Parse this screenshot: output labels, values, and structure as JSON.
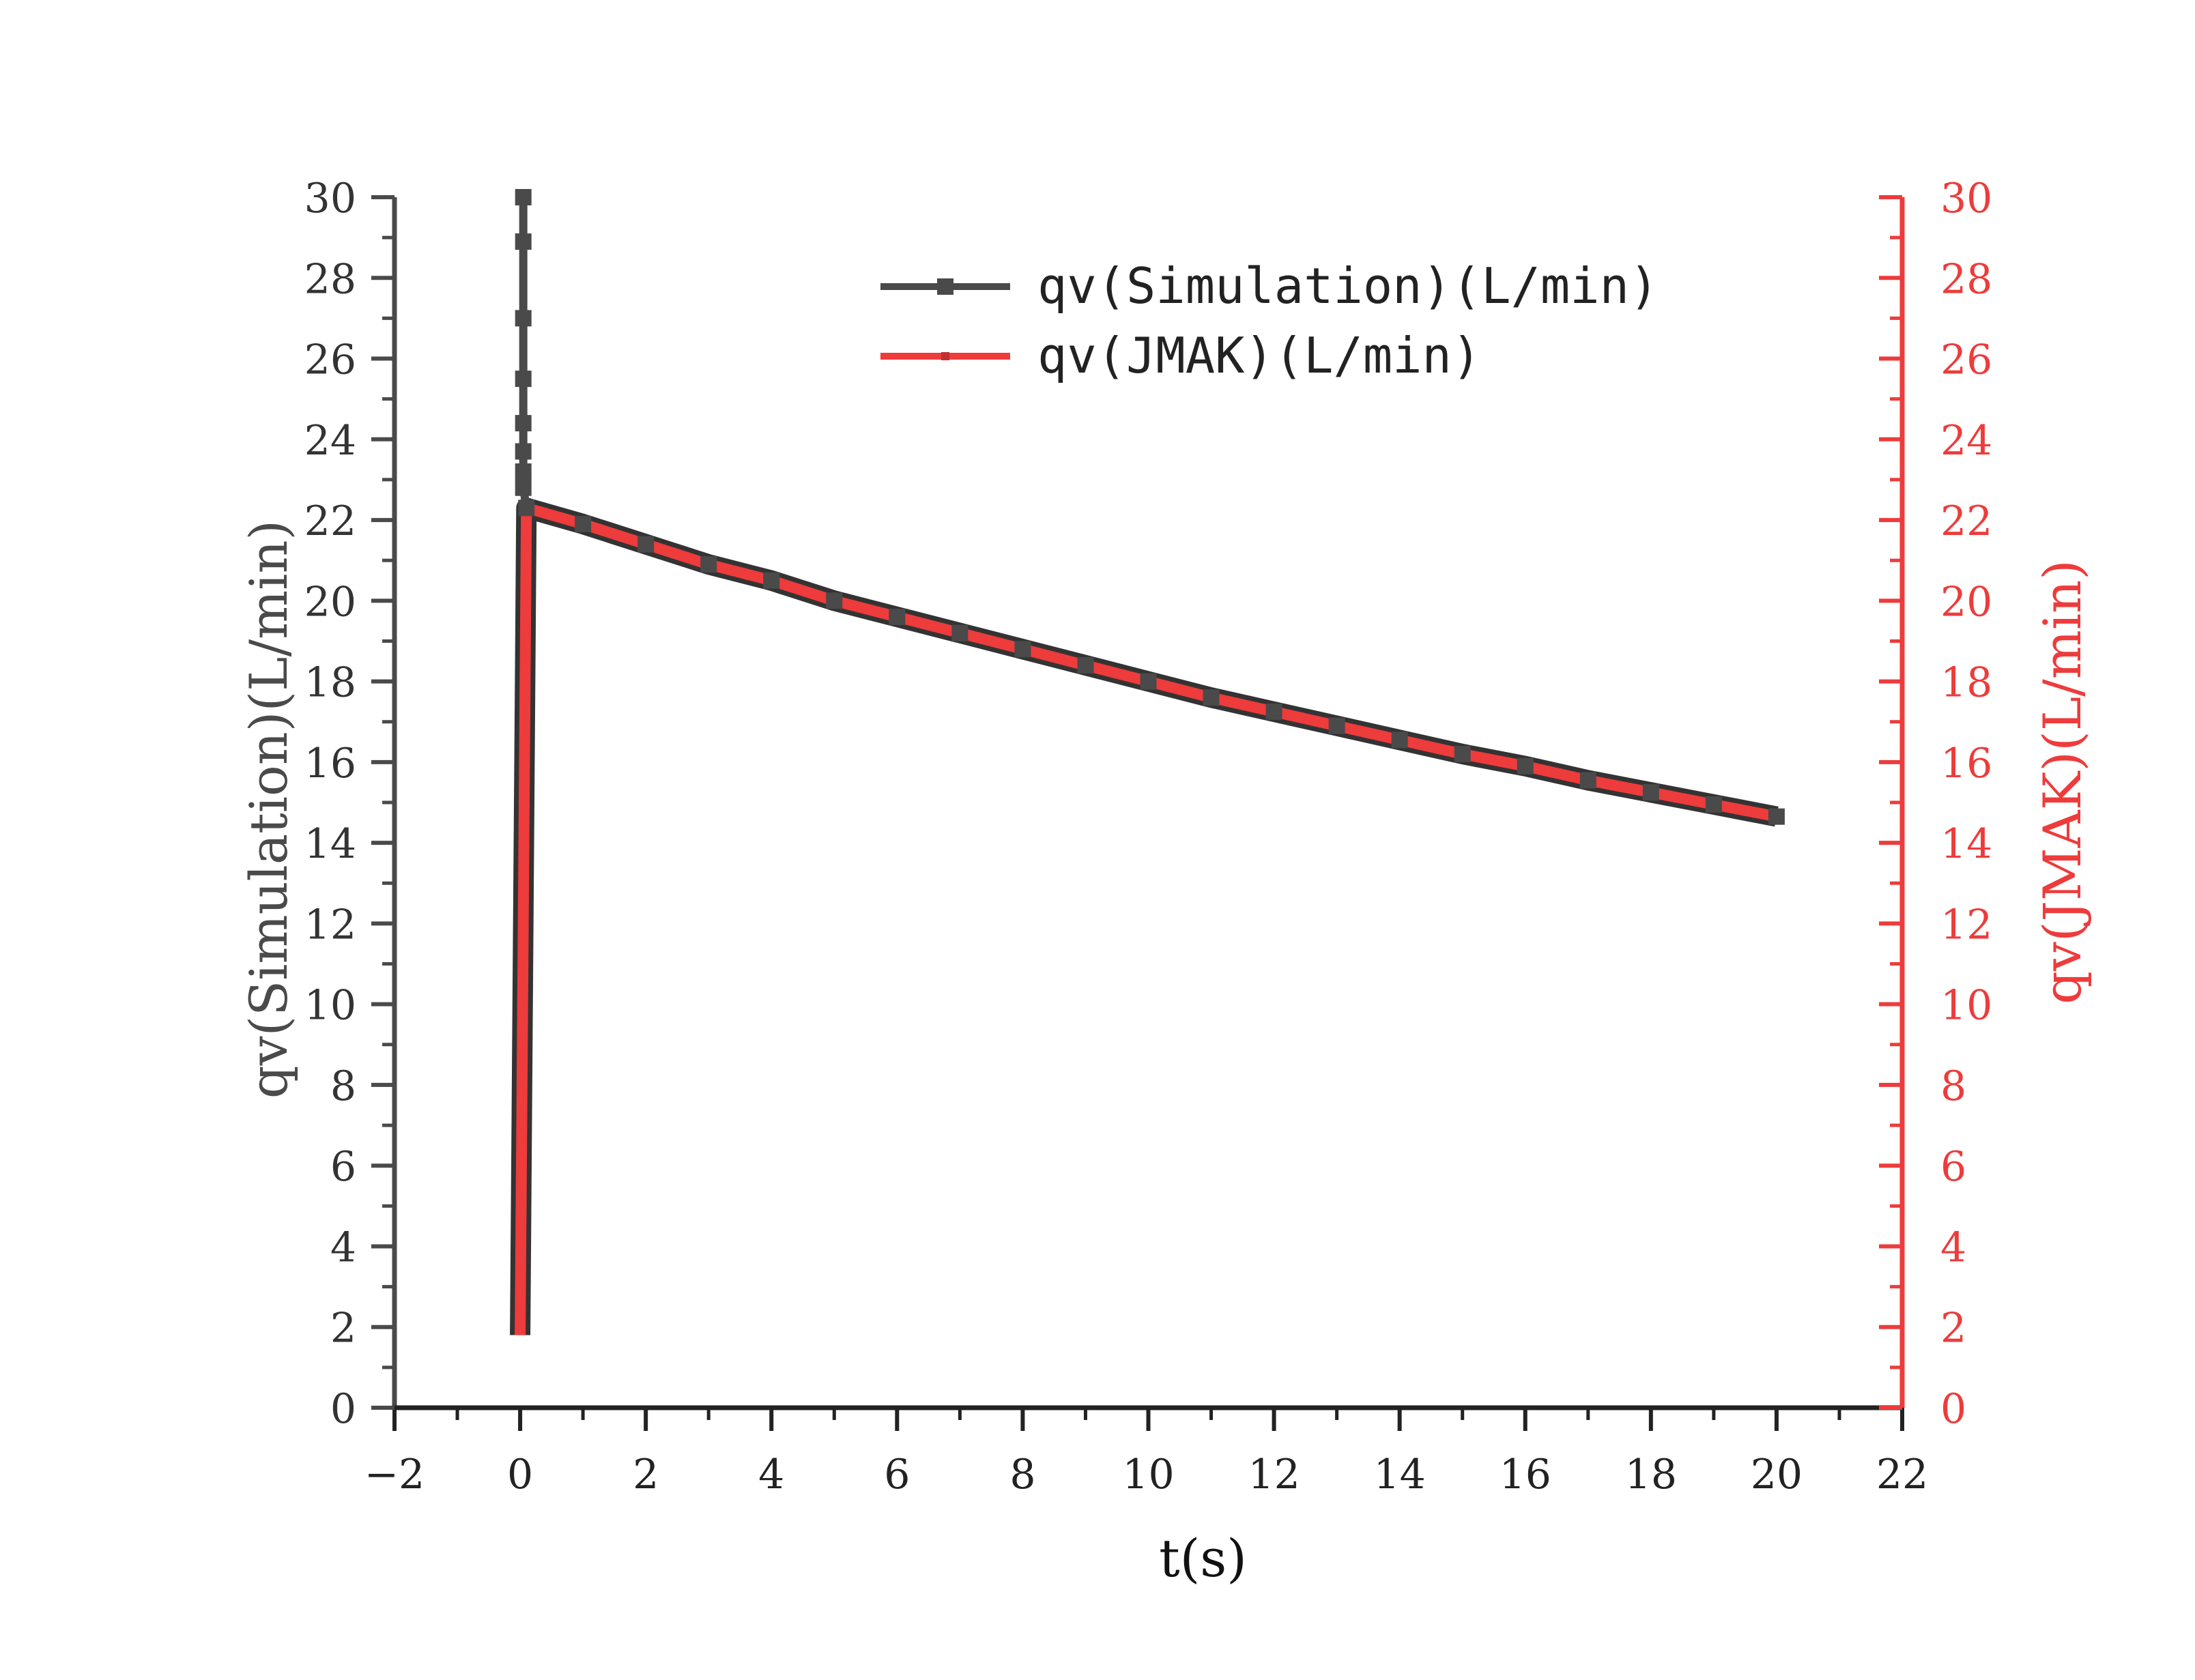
{
  "chart_data": {
    "type": "line",
    "xlabel": "t(s)",
    "ylabel": "qv(Simulation)(L/min)",
    "y2label": "qv(JMAK)(L/min)",
    "xlim": [
      -2,
      22
    ],
    "ylim": [
      0,
      30
    ],
    "y2lim": [
      0,
      30
    ],
    "xticks": [
      -2,
      0,
      2,
      4,
      6,
      8,
      10,
      12,
      14,
      16,
      18,
      20,
      22
    ],
    "xtick_labels": [
      "−2",
      "0",
      "2",
      "4",
      "6",
      "8",
      "10",
      "12",
      "14",
      "16",
      "18",
      "20",
      "22"
    ],
    "yticks": [
      0,
      2,
      4,
      6,
      8,
      10,
      12,
      14,
      16,
      18,
      20,
      22,
      24,
      26,
      28,
      30
    ],
    "ytick_labels": [
      "0",
      "2",
      "4",
      "6",
      "8",
      "10",
      "12",
      "14",
      "16",
      "18",
      "20",
      "22",
      "24",
      "26",
      "28",
      "30"
    ],
    "grid": false,
    "legend_position": "top-center",
    "series": [
      {
        "name": "qv(Simulation)(L/min)",
        "axis": "left",
        "color": "#4a4a4a",
        "marker": "square",
        "x": [
          0.05,
          0.05,
          0.05,
          0.05,
          0.05,
          0.05,
          0.05,
          0.05,
          0.1,
          1,
          2,
          3,
          4,
          5,
          6,
          7,
          8,
          9,
          10,
          11,
          12,
          13,
          14,
          15,
          16,
          17,
          18,
          19,
          20
        ],
        "y": [
          30,
          28.9,
          27,
          25.5,
          24.4,
          23.7,
          23.2,
          22.8,
          22.3,
          21.9,
          21.4,
          20.9,
          20.5,
          20.0,
          19.6,
          19.2,
          18.8,
          18.4,
          18.0,
          17.6,
          17.25,
          16.9,
          16.55,
          16.2,
          15.9,
          15.55,
          15.25,
          14.95,
          14.65
        ]
      },
      {
        "name": "qv(JMAK)(L/min)",
        "axis": "right",
        "color": "#ee3b3b",
        "marker": "none",
        "x": [
          0,
          0.1,
          1,
          2,
          3,
          4,
          5,
          6,
          7,
          8,
          9,
          10,
          11,
          12,
          13,
          14,
          15,
          16,
          17,
          18,
          19,
          20
        ],
        "y": [
          1.8,
          22.3,
          21.9,
          21.4,
          20.9,
          20.5,
          20.0,
          19.6,
          19.2,
          18.8,
          18.4,
          18.0,
          17.6,
          17.25,
          16.9,
          16.55,
          16.2,
          15.9,
          15.55,
          15.25,
          14.95,
          14.65
        ]
      }
    ]
  }
}
